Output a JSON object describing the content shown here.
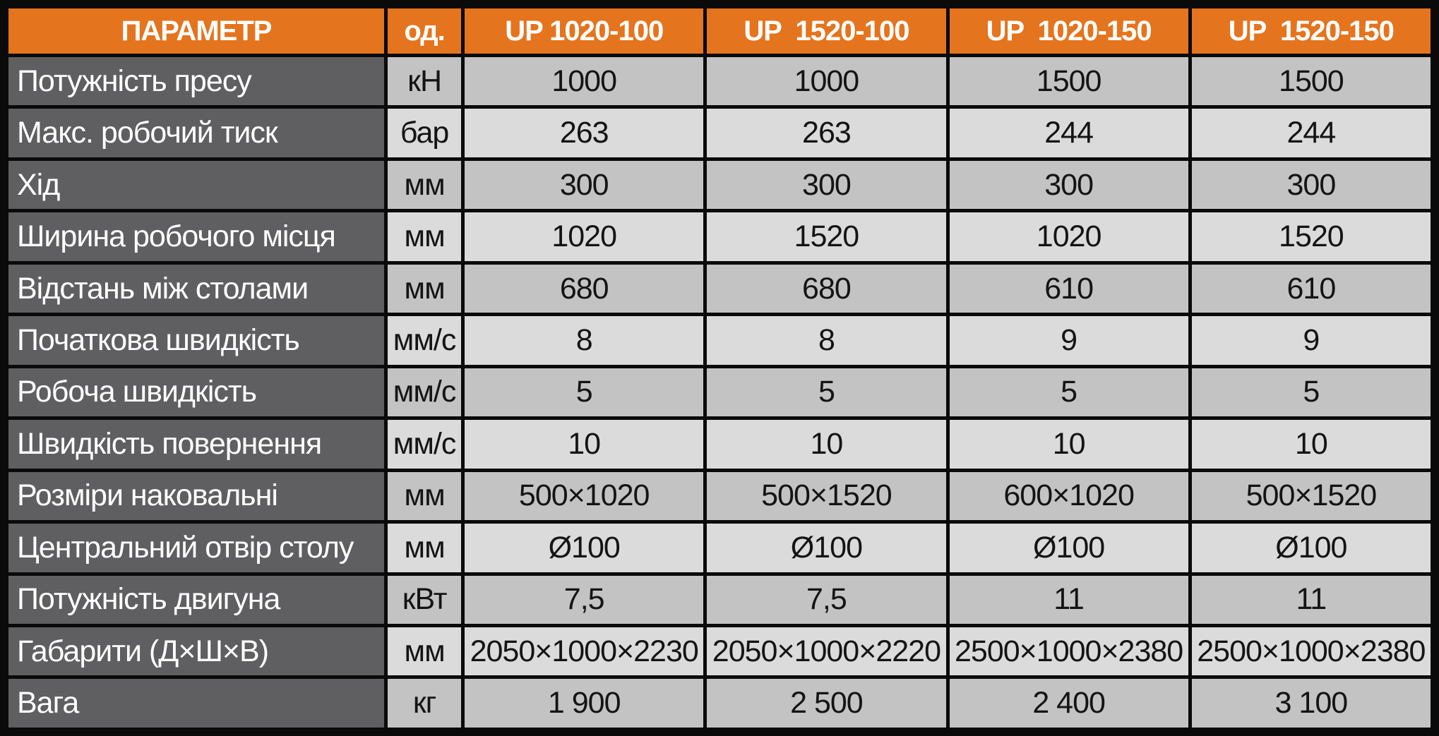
{
  "table": {
    "colors": {
      "header_bg": "#e5741e",
      "param_col_bg": "#5f5f61",
      "row_odd_bg": "#c3c3c3",
      "row_even_bg": "#dbdbdb",
      "grid": "#0a0a0a",
      "header_text": "#ffffff",
      "param_text": "#ffffff",
      "value_text": "#141414"
    },
    "header": {
      "param": "ПАРАМЕТР",
      "unit": "од.",
      "models": [
        "UP 1020-100",
        "UP  1520-100",
        "UP  1020-150",
        "UP  1520-150"
      ]
    },
    "rows": [
      {
        "param": "Потужність пресу",
        "unit": "кН",
        "values": [
          "1000",
          "1000",
          "1500",
          "1500"
        ]
      },
      {
        "param": "Макс. робочий тиск",
        "unit": "бар",
        "values": [
          "263",
          "263",
          "244",
          "244"
        ]
      },
      {
        "param": "Хід",
        "unit": "мм",
        "values": [
          "300",
          "300",
          "300",
          "300"
        ]
      },
      {
        "param": "Ширина робочого місця",
        "unit": "мм",
        "values": [
          "1020",
          "1520",
          "1020",
          "1520"
        ]
      },
      {
        "param": "Відстань між столами",
        "unit": "мм",
        "values": [
          "680",
          "680",
          "610",
          "610"
        ]
      },
      {
        "param": "Початкова швидкість",
        "unit": "мм/с",
        "values": [
          "8",
          "8",
          "9",
          "9"
        ]
      },
      {
        "param": "Робоча швидкість",
        "unit": "мм/с",
        "values": [
          "5",
          "5",
          "5",
          "5"
        ]
      },
      {
        "param": "Швидкість повернення",
        "unit": "мм/с",
        "values": [
          "10",
          "10",
          "10",
          "10"
        ]
      },
      {
        "param": "Розміри наковальні",
        "unit": "мм",
        "values": [
          "500×1020",
          "500×1520",
          "600×1020",
          "500×1520"
        ]
      },
      {
        "param": "Центральний отвір столу",
        "unit": "мм",
        "values": [
          "Ø100",
          "Ø100",
          "Ø100",
          "Ø100"
        ]
      },
      {
        "param": "Потужність двигуна",
        "unit": "кВт",
        "values": [
          "7,5",
          "7,5",
          "11",
          "11"
        ]
      },
      {
        "param": "Габарити (Д×Ш×В)",
        "unit": "мм",
        "values": [
          "2050×1000×2230",
          "2050×1000×2220",
          "2500×1000×2380",
          "2500×1000×2380"
        ]
      },
      {
        "param": "Вага",
        "unit": "кг",
        "values": [
          "1 900",
          "2 500",
          "2 400",
          "3 100"
        ]
      }
    ]
  }
}
